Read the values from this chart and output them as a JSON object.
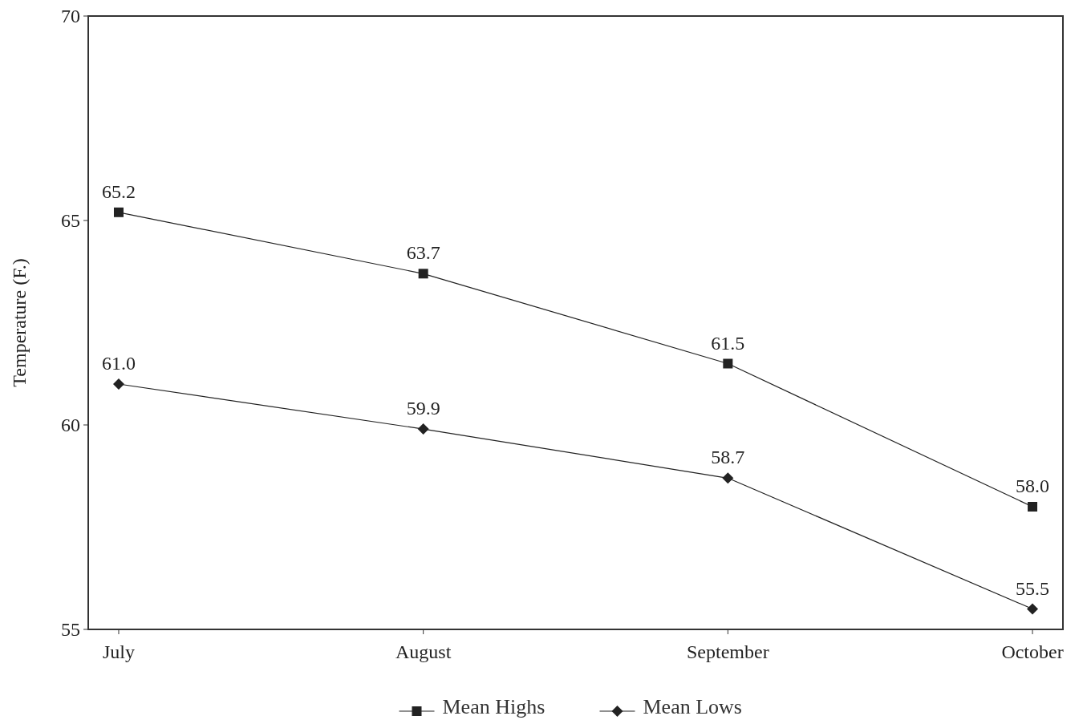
{
  "chart_data": {
    "type": "line",
    "ylabel": "Temperature (F.)",
    "categories": [
      "July",
      "August",
      "September",
      "October"
    ],
    "series": [
      {
        "name": "Mean Highs",
        "color": "#222222",
        "marker": "square",
        "values": [
          65.2,
          63.7,
          61.5,
          58.0
        ],
        "value_labels": [
          "65.2",
          "63.7",
          "61.5",
          "58.0"
        ]
      },
      {
        "name": "Mean Lows",
        "color": "#222222",
        "marker": "diamond",
        "values": [
          61.0,
          59.9,
          58.7,
          55.5
        ],
        "value_labels": [
          "61.0",
          "59.9",
          "58.7",
          "55.5"
        ]
      }
    ],
    "ylim": [
      55,
      70
    ],
    "yticks": [
      55,
      60,
      65,
      70
    ],
    "legend": "bottom",
    "grid": false,
    "line_style": "solid"
  }
}
